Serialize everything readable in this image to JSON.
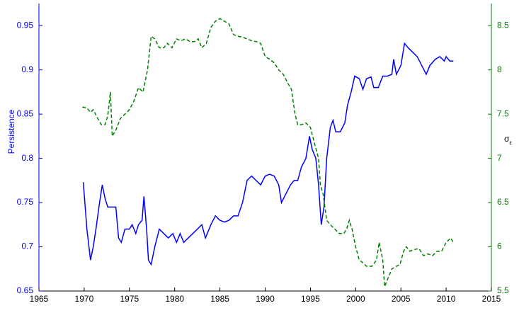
{
  "chart_data": {
    "type": "line",
    "xlim": [
      1965,
      2015
    ],
    "xticks": [
      1965,
      1970,
      1975,
      1980,
      1985,
      1990,
      1995,
      2000,
      2005,
      2010,
      2015
    ],
    "ylim": [
      0.65,
      0.975
    ],
    "yticks": [
      0.65,
      {
        "value": 0.7,
        "label": "0.7"
      },
      0.75,
      {
        "value": 0.8,
        "label": "0.8"
      },
      0.85,
      {
        "value": 0.9,
        "label": "0.9"
      },
      0.95
    ],
    "y2lim": [
      5.5,
      8.75
    ],
    "y2ticks": [
      5.5,
      6,
      6.5,
      7,
      7.5,
      8,
      8.5
    ],
    "ylabel": "Persistence",
    "y2label": {
      "base": "σ",
      "sub": "ε"
    },
    "series": [
      {
        "name": "Persistence",
        "color": "#0000ff",
        "linestyle": "solid",
        "x": [
          1969.9,
          1970.3,
          1970.7,
          1971.0,
          1971.3,
          1971.7,
          1972.0,
          1972.3,
          1972.6,
          1973.0,
          1973.5,
          1973.8,
          1974.1,
          1974.5,
          1975.0,
          1975.3,
          1975.7,
          1976.0,
          1976.4,
          1976.6,
          1976.9,
          1977.1,
          1977.4,
          1977.8,
          1978.3,
          1978.8,
          1979.3,
          1979.8,
          1980.2,
          1980.6,
          1981.0,
          1981.5,
          1982.0,
          1982.5,
          1983.0,
          1983.4,
          1984.0,
          1984.5,
          1985.0,
          1985.5,
          1986.0,
          1986.5,
          1987.0,
          1987.5,
          1988.0,
          1988.5,
          1989.0,
          1989.5,
          1990.0,
          1990.5,
          1991.0,
          1991.5,
          1991.8,
          1992.3,
          1992.8,
          1993.2,
          1993.6,
          1994.0,
          1994.5,
          1994.9,
          1995.2,
          1995.6,
          1995.9,
          1996.2,
          1996.5,
          1996.8,
          1997.2,
          1997.5,
          1997.8,
          1998.3,
          1998.8,
          1999.1,
          1999.5,
          1999.9,
          2000.4,
          2000.8,
          2001.2,
          2001.7,
          2002.0,
          2002.5,
          2003.0,
          2003.5,
          2004.0,
          2004.2,
          2004.5,
          2005.0,
          2005.4,
          2005.8,
          2006.3,
          2006.8,
          2007.3,
          2007.8,
          2008.2,
          2008.8,
          2009.3,
          2009.8,
          2010.0,
          2010.4,
          2010.8
        ],
        "values": [
          0.773,
          0.72,
          0.685,
          0.7,
          0.72,
          0.75,
          0.77,
          0.755,
          0.745,
          0.745,
          0.745,
          0.71,
          0.705,
          0.72,
          0.72,
          0.725,
          0.715,
          0.725,
          0.73,
          0.757,
          0.72,
          0.685,
          0.68,
          0.7,
          0.72,
          0.715,
          0.71,
          0.715,
          0.705,
          0.715,
          0.705,
          0.71,
          0.715,
          0.72,
          0.725,
          0.71,
          0.725,
          0.735,
          0.73,
          0.728,
          0.73,
          0.735,
          0.735,
          0.75,
          0.775,
          0.78,
          0.775,
          0.77,
          0.78,
          0.782,
          0.78,
          0.77,
          0.75,
          0.76,
          0.77,
          0.775,
          0.775,
          0.79,
          0.8,
          0.825,
          0.81,
          0.8,
          0.77,
          0.725,
          0.745,
          0.8,
          0.835,
          0.843,
          0.83,
          0.83,
          0.84,
          0.86,
          0.875,
          0.893,
          0.89,
          0.878,
          0.89,
          0.892,
          0.88,
          0.88,
          0.893,
          0.893,
          0.895,
          0.912,
          0.895,
          0.905,
          0.93,
          0.925,
          0.92,
          0.915,
          0.905,
          0.895,
          0.905,
          0.912,
          0.915,
          0.91,
          0.915,
          0.91,
          0.91
        ]
      },
      {
        "name": "σε",
        "color": "#008000",
        "linestyle": "dashed",
        "axis": "y2",
        "x": [
          1969.8,
          1970.3,
          1970.7,
          1971.0,
          1971.5,
          1971.9,
          1972.3,
          1972.6,
          1972.9,
          1973.1,
          1973.5,
          1974.0,
          1974.5,
          1975.0,
          1975.5,
          1976.0,
          1976.5,
          1977.0,
          1977.4,
          1977.8,
          1978.3,
          1978.8,
          1979.2,
          1979.7,
          1980.2,
          1980.7,
          1981.2,
          1981.7,
          1982.2,
          1982.6,
          1983.0,
          1983.5,
          1984.0,
          1984.5,
          1985.0,
          1985.5,
          1986.0,
          1986.5,
          1987.0,
          1987.5,
          1988.0,
          1988.5,
          1989.0,
          1989.5,
          1990.0,
          1990.5,
          1991.0,
          1991.5,
          1992.0,
          1992.5,
          1992.9,
          1993.3,
          1993.6,
          1994.0,
          1994.5,
          1995.0,
          1995.5,
          1995.9,
          1996.1,
          1996.4,
          1996.8,
          1997.2,
          1997.7,
          1998.2,
          1998.7,
          1999.0,
          1999.3,
          1999.6,
          2000.0,
          2000.4,
          2000.8,
          2001.2,
          2001.8,
          2002.3,
          2002.6,
          2003.0,
          2003.2,
          2003.6,
          2004.0,
          2004.5,
          2004.9,
          2005.3,
          2005.6,
          2006.0,
          2006.5,
          2007.0,
          2007.5,
          2008.0,
          2008.5,
          2009.0,
          2009.5,
          2010.0,
          2010.5,
          2010.8
        ],
        "values": [
          7.58,
          7.57,
          7.52,
          7.55,
          7.45,
          7.38,
          7.38,
          7.48,
          7.75,
          7.25,
          7.32,
          7.45,
          7.5,
          7.55,
          7.65,
          7.8,
          7.75,
          8.0,
          8.38,
          8.35,
          8.25,
          8.25,
          8.3,
          8.25,
          8.35,
          8.33,
          8.35,
          8.32,
          8.32,
          8.35,
          8.25,
          8.3,
          8.48,
          8.55,
          8.58,
          8.55,
          8.52,
          8.4,
          8.38,
          8.37,
          8.35,
          8.33,
          8.32,
          8.3,
          8.15,
          8.12,
          8.08,
          8.0,
          7.95,
          7.85,
          7.78,
          7.5,
          7.38,
          7.38,
          7.4,
          7.35,
          7.15,
          7.0,
          6.7,
          6.6,
          6.3,
          6.25,
          6.2,
          6.15,
          6.15,
          6.2,
          6.3,
          6.2,
          6.0,
          5.85,
          5.82,
          5.78,
          5.78,
          5.85,
          6.05,
          5.85,
          5.55,
          5.65,
          5.75,
          5.78,
          5.8,
          5.95,
          6.0,
          5.95,
          5.97,
          5.98,
          5.9,
          5.92,
          5.9,
          5.95,
          5.95,
          6.05,
          6.1,
          6.05
        ]
      }
    ]
  }
}
